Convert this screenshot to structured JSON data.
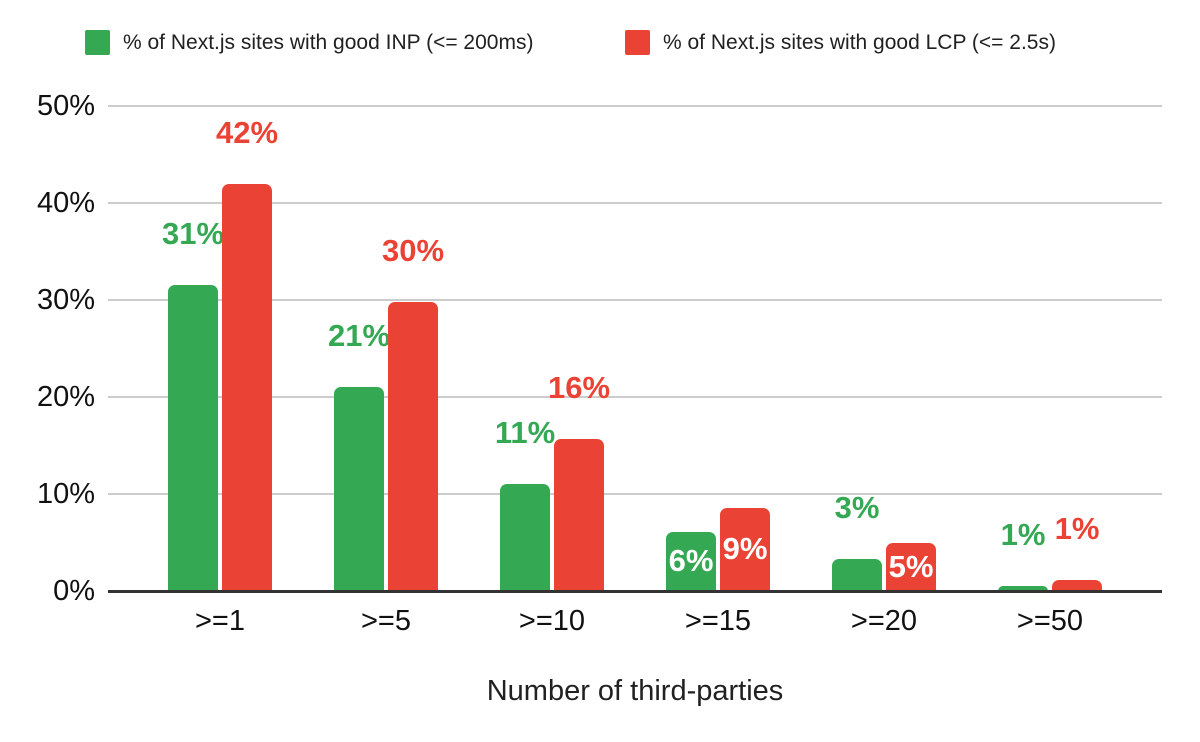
{
  "chart_data": {
    "type": "bar",
    "title": "",
    "xlabel": "Number of third-parties",
    "ylabel": "",
    "categories": [
      ">=1",
      ">=5",
      ">=10",
      ">=15",
      ">=20",
      ">=50"
    ],
    "series": [
      {
        "name": "% of Next.js sites with good INP (<= 200ms)",
        "color": "#34a853",
        "values": [
          31,
          21,
          11,
          6,
          3,
          1
        ],
        "labels": [
          "31%",
          "21%",
          "11%",
          "6%",
          "3%",
          "1%"
        ],
        "bar_heights_pct": [
          31.5,
          21,
          11,
          6.1,
          3.3,
          0.5
        ],
        "label_positions": [
          "above",
          "above",
          "above",
          "inside",
          "above",
          "above"
        ]
      },
      {
        "name": "% of Next.js sites with good LCP (<= 2.5s)",
        "color": "#ea4335",
        "values": [
          42,
          30,
          16,
          9,
          5,
          1
        ],
        "labels": [
          "42%",
          "30%",
          "16%",
          "9%",
          "5%",
          "1%"
        ],
        "bar_heights_pct": [
          42,
          29.8,
          15.7,
          8.6,
          5,
          1.1
        ],
        "label_positions": [
          "above",
          "above",
          "above",
          "inside",
          "inside",
          "above"
        ]
      }
    ],
    "y_axis": {
      "min": 0,
      "max": 50,
      "tick_values": [
        0,
        10,
        20,
        30,
        40,
        50
      ],
      "tick_labels": [
        "0%",
        "10%",
        "20%",
        "30%",
        "40%",
        "50%"
      ],
      "grid": true
    },
    "legend_position": "top"
  },
  "colors": {
    "inp_green": "#34a853",
    "lcp_red": "#ea4335",
    "gridline": "#cccccc",
    "axis_line": "#333333",
    "tick_text": "#111111",
    "inside_label_text": "#ffffff"
  }
}
